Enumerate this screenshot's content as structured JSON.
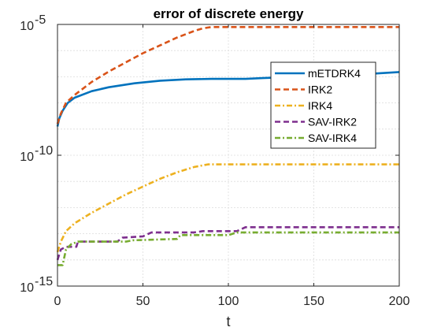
{
  "chart_data": {
    "type": "line",
    "title": "error of discrete energy",
    "xlabel": "t",
    "ylabel": "",
    "xlim": [
      0,
      200
    ],
    "ylim_log10": [
      -15,
      -5
    ],
    "yscale": "log",
    "grid": true,
    "legend_position": "upper-right-inside",
    "x_ticks": [
      0,
      50,
      100,
      150,
      200
    ],
    "x_tick_labels": [
      "0",
      "50",
      "100",
      "150",
      "200"
    ],
    "y_ticks_log10": [
      -15,
      -10,
      -5
    ],
    "y_tick_bases": [
      "10",
      "10",
      "10"
    ],
    "y_tick_exponents": [
      "-15",
      "-10",
      "-5"
    ],
    "series": [
      {
        "name": "mETDRK4",
        "color": "#0072BD",
        "style": "solid",
        "points_log10": [
          [
            0,
            -8.9
          ],
          [
            1,
            -8.6
          ],
          [
            3,
            -8.3
          ],
          [
            6,
            -8.0
          ],
          [
            10,
            -7.8
          ],
          [
            20,
            -7.55
          ],
          [
            30,
            -7.4
          ],
          [
            45,
            -7.25
          ],
          [
            60,
            -7.15
          ],
          [
            75,
            -7.1
          ],
          [
            90,
            -7.08
          ],
          [
            110,
            -7.08
          ],
          [
            120,
            -7.05
          ],
          [
            140,
            -7.0
          ],
          [
            160,
            -6.95
          ],
          [
            180,
            -6.9
          ],
          [
            200,
            -6.82
          ]
        ]
      },
      {
        "name": "IRK2",
        "color": "#D95319",
        "style": "dashed",
        "points_log10": [
          [
            0,
            -8.8
          ],
          [
            2,
            -8.4
          ],
          [
            5,
            -8.0
          ],
          [
            10,
            -7.7
          ],
          [
            20,
            -7.2
          ],
          [
            30,
            -6.8
          ],
          [
            40,
            -6.45
          ],
          [
            50,
            -6.1
          ],
          [
            60,
            -5.8
          ],
          [
            70,
            -5.5
          ],
          [
            80,
            -5.25
          ],
          [
            85,
            -5.15
          ],
          [
            90,
            -5.1
          ],
          [
            200,
            -5.1
          ]
        ]
      },
      {
        "name": "IRK4",
        "color": "#EDB120",
        "style": "dashdot",
        "points_log10": [
          [
            0,
            -13.7
          ],
          [
            2,
            -13.3
          ],
          [
            5,
            -12.9
          ],
          [
            10,
            -12.6
          ],
          [
            20,
            -12.2
          ],
          [
            30,
            -11.85
          ],
          [
            40,
            -11.5
          ],
          [
            50,
            -11.2
          ],
          [
            60,
            -10.9
          ],
          [
            70,
            -10.65
          ],
          [
            80,
            -10.45
          ],
          [
            88,
            -10.35
          ],
          [
            100,
            -10.35
          ],
          [
            200,
            -10.35
          ]
        ]
      },
      {
        "name": "SAV-IRK2",
        "color": "#7E2F8E",
        "style": "dashed",
        "points_log10": [
          [
            0,
            -14.0
          ],
          [
            2,
            -13.6
          ],
          [
            5,
            -13.5
          ],
          [
            10,
            -13.5
          ],
          [
            11,
            -13.5
          ],
          [
            12,
            -13.3
          ],
          [
            35,
            -13.3
          ],
          [
            38,
            -13.15
          ],
          [
            50,
            -13.1
          ],
          [
            55,
            -12.95
          ],
          [
            80,
            -12.95
          ],
          [
            85,
            -12.9
          ],
          [
            105,
            -12.9
          ],
          [
            110,
            -12.75
          ],
          [
            200,
            -12.75
          ]
        ]
      },
      {
        "name": "SAV-IRK4",
        "color": "#77AC30",
        "style": "dashdot",
        "points_log10": [
          [
            0,
            -14.2
          ],
          [
            3,
            -14.2
          ],
          [
            5,
            -13.6
          ],
          [
            8,
            -13.4
          ],
          [
            12,
            -13.3
          ],
          [
            40,
            -13.3
          ],
          [
            44,
            -13.25
          ],
          [
            70,
            -13.2
          ],
          [
            72,
            -13.05
          ],
          [
            100,
            -13.05
          ],
          [
            105,
            -12.95
          ],
          [
            200,
            -12.95
          ]
        ]
      }
    ]
  }
}
